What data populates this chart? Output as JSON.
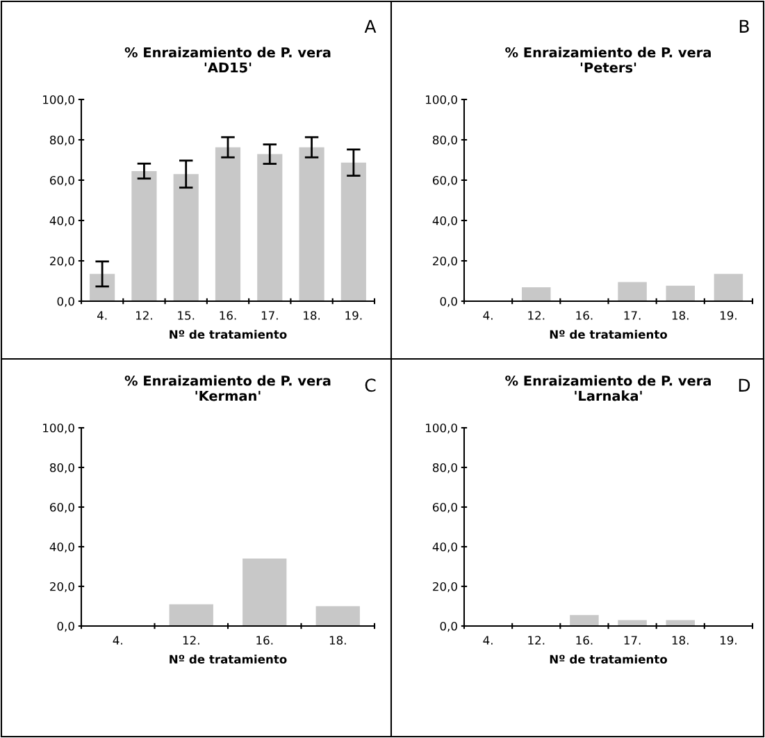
{
  "chart_data": [
    {
      "type": "bar",
      "title": "% Enraizamiento de P. vera\n'AD15'",
      "xlabel": "Nº de tratamiento",
      "categories": [
        "4.",
        "12.",
        "15.",
        "16.",
        "17.",
        "18.",
        "19."
      ],
      "values": [
        13.5,
        64.5,
        63.0,
        76.3,
        72.9,
        76.3,
        68.7
      ],
      "errors": [
        6.2,
        3.7,
        6.7,
        5.0,
        4.8,
        5.0,
        6.5
      ],
      "color": "#c8c8c8",
      "ylim": [
        0,
        100
      ],
      "yticks": [
        {
          "value": 0,
          "label": "0,0"
        },
        {
          "value": 20,
          "label": "20,0"
        },
        {
          "value": 40,
          "label": "40,0"
        },
        {
          "value": 60,
          "label": "60,0"
        },
        {
          "value": 80,
          "label": "80,0"
        },
        {
          "value": 100,
          "label": "100,0"
        }
      ],
      "annotations": [
        "A"
      ],
      "grid": false,
      "legend": false
    },
    {
      "type": "bar",
      "title": "% Enraizamiento de P. vera\n'Peters'",
      "xlabel": "Nº de tratamiento",
      "categories": [
        "4.",
        "12.",
        "16.",
        "17.",
        "18.",
        "19."
      ],
      "values": [
        0,
        6.9,
        0,
        9.5,
        7.7,
        13.5
      ],
      "color": "#c8c8c8",
      "ylim": [
        0,
        100
      ],
      "yticks": [
        {
          "value": 0,
          "label": "0,0"
        },
        {
          "value": 20,
          "label": "20,0"
        },
        {
          "value": 40,
          "label": "40,0"
        },
        {
          "value": 60,
          "label": "60,0"
        },
        {
          "value": 80,
          "label": "80,0"
        },
        {
          "value": 100,
          "label": "100,0"
        }
      ],
      "annotations": [
        "B"
      ],
      "grid": false,
      "legend": false
    },
    {
      "type": "bar",
      "title": "% Enraizamiento de P. vera\n'Kerman'",
      "xlabel": "Nº de tratamiento",
      "categories": [
        "4.",
        "12.",
        "16.",
        "18."
      ],
      "values": [
        0,
        11.0,
        34.0,
        10.0
      ],
      "color": "#c8c8c8",
      "ylim": [
        0,
        100
      ],
      "yticks": [
        {
          "value": 0,
          "label": "0,0"
        },
        {
          "value": 20,
          "label": "20,0"
        },
        {
          "value": 40,
          "label": "40,0"
        },
        {
          "value": 60,
          "label": "60,0"
        },
        {
          "value": 80,
          "label": "80,0"
        },
        {
          "value": 100,
          "label": "100,0"
        }
      ],
      "annotations": [
        "C"
      ],
      "grid": false,
      "legend": false
    },
    {
      "type": "bar",
      "title": "% Enraizamiento de P. vera\n'Larnaka'",
      "xlabel": "Nº de tratamiento",
      "categories": [
        "4.",
        "12.",
        "16.",
        "17.",
        "18.",
        "19."
      ],
      "values": [
        0,
        0,
        5.5,
        3.0,
        3.0,
        0
      ],
      "color": "#c8c8c8",
      "ylim": [
        0,
        100
      ],
      "yticks": [
        {
          "value": 0,
          "label": "0,0"
        },
        {
          "value": 20,
          "label": "20,0"
        },
        {
          "value": 40,
          "label": "40,0"
        },
        {
          "value": 60,
          "label": "60,0"
        },
        {
          "value": 80,
          "label": "80,0"
        },
        {
          "value": 100,
          "label": "100,0"
        }
      ],
      "annotations": [
        "D"
      ],
      "grid": false,
      "legend": false
    }
  ]
}
